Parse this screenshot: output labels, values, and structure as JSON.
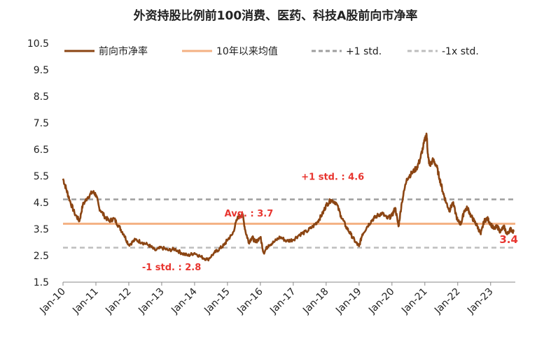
{
  "chart_data": {
    "type": "line",
    "title": "外资持股比例前100消费、医药、科技A股前向市净率",
    "xlabel": "",
    "ylabel": "",
    "ylim": [
      1.5,
      10.5
    ],
    "yticks": [
      "10.5",
      "9.5",
      "8.5",
      "7.5",
      "6.5",
      "5.5",
      "4.5",
      "3.5",
      "2.5",
      "1.5"
    ],
    "ytick_values": [
      10.5,
      9.5,
      8.5,
      7.5,
      6.5,
      5.5,
      4.5,
      3.5,
      2.5,
      1.5
    ],
    "xticks": [
      "Jan-10",
      "Jan-11",
      "Jan-12",
      "Jan-13",
      "Jan-14",
      "Jan-15",
      "Jan-16",
      "Jan-17",
      "Jan-18",
      "Jan-19",
      "Jan-20",
      "Jan-21",
      "Jan-22",
      "Jan-23"
    ],
    "xtick_years": [
      2010,
      2011,
      2012,
      2013,
      2014,
      2015,
      2016,
      2017,
      2018,
      2019,
      2020,
      2021,
      2022,
      2023
    ],
    "x_range": [
      2010,
      2023.75
    ],
    "series": [
      {
        "name": "前向市净率",
        "color": "#8b4513",
        "x": [
          2010.0,
          2010.1,
          2010.2,
          2010.35,
          2010.5,
          2010.6,
          2010.75,
          2010.9,
          2011.0,
          2011.1,
          2011.25,
          2011.4,
          2011.55,
          2011.7,
          2011.85,
          2012.0,
          2012.2,
          2012.4,
          2012.6,
          2012.8,
          2013.0,
          2013.2,
          2013.4,
          2013.6,
          2013.8,
          2014.0,
          2014.2,
          2014.4,
          2014.6,
          2014.75,
          2014.9,
          2015.0,
          2015.15,
          2015.3,
          2015.45,
          2015.55,
          2015.65,
          2015.75,
          2015.85,
          2016.0,
          2016.1,
          2016.25,
          2016.4,
          2016.6,
          2016.8,
          2017.0,
          2017.2,
          2017.4,
          2017.6,
          2017.75,
          2017.9,
          2018.0,
          2018.15,
          2018.3,
          2018.45,
          2018.6,
          2018.75,
          2018.9,
          2019.0,
          2019.1,
          2019.25,
          2019.4,
          2019.55,
          2019.7,
          2019.85,
          2020.0,
          2020.1,
          2020.2,
          2020.3,
          2020.45,
          2020.6,
          2020.75,
          2020.85,
          2020.95,
          2021.05,
          2021.1,
          2021.15,
          2021.25,
          2021.35,
          2021.45,
          2021.55,
          2021.65,
          2021.75,
          2021.85,
          2022.0,
          2022.1,
          2022.2,
          2022.3,
          2022.4,
          2022.5,
          2022.6,
          2022.7,
          2022.8,
          2022.9,
          2023.0,
          2023.1,
          2023.2,
          2023.3,
          2023.4,
          2023.5,
          2023.6,
          2023.7
        ],
        "values": [
          5.4,
          5.0,
          4.6,
          4.1,
          3.8,
          4.4,
          4.7,
          4.9,
          4.8,
          4.3,
          4.0,
          3.8,
          3.9,
          3.6,
          3.3,
          2.9,
          3.1,
          3.0,
          2.9,
          2.7,
          2.8,
          2.7,
          2.75,
          2.6,
          2.5,
          2.6,
          2.45,
          2.35,
          2.6,
          2.75,
          2.9,
          3.1,
          3.3,
          3.9,
          4.1,
          3.4,
          3.0,
          3.2,
          3.0,
          3.2,
          2.6,
          2.9,
          3.0,
          3.2,
          3.05,
          3.1,
          3.3,
          3.4,
          3.6,
          3.8,
          4.1,
          4.4,
          4.6,
          4.5,
          4.0,
          3.6,
          3.3,
          3.0,
          2.85,
          3.3,
          3.6,
          3.85,
          4.0,
          4.1,
          3.9,
          4.0,
          4.3,
          3.6,
          4.5,
          5.4,
          5.6,
          5.8,
          6.1,
          6.6,
          7.1,
          6.2,
          5.9,
          6.1,
          5.9,
          5.4,
          4.9,
          4.5,
          4.2,
          4.5,
          3.8,
          3.7,
          4.2,
          4.3,
          4.0,
          3.8,
          3.6,
          3.3,
          3.8,
          3.9,
          3.7,
          3.5,
          3.6,
          3.4,
          3.6,
          3.3,
          3.5,
          3.4
        ]
      }
    ],
    "reference_lines": [
      {
        "name": "10年以来均值",
        "value": 3.7,
        "color": "#f4b183",
        "style": "solid"
      },
      {
        "name": "+1 std.",
        "value": 4.62,
        "color": "#9e9e9e",
        "style": "dashed"
      },
      {
        "name": "-1x std.",
        "value": 2.8,
        "color": "#bdbdbd",
        "style": "dashed"
      }
    ],
    "legend": [
      "前向市净率",
      "10年以来均值",
      "+1 std.",
      "-1x std."
    ],
    "legend_position": "top",
    "annotations": [
      {
        "text": "+1 std. : 4.6",
        "x": 2018.2,
        "y": 5.35
      },
      {
        "text": "Avg. : 3.7",
        "x": 2015.65,
        "y": 3.98
      },
      {
        "text": "-1 std. : 2.8",
        "x": 2013.3,
        "y": 1.95
      },
      {
        "text": "3.4",
        "x": 2023.55,
        "y": 2.97
      }
    ]
  }
}
